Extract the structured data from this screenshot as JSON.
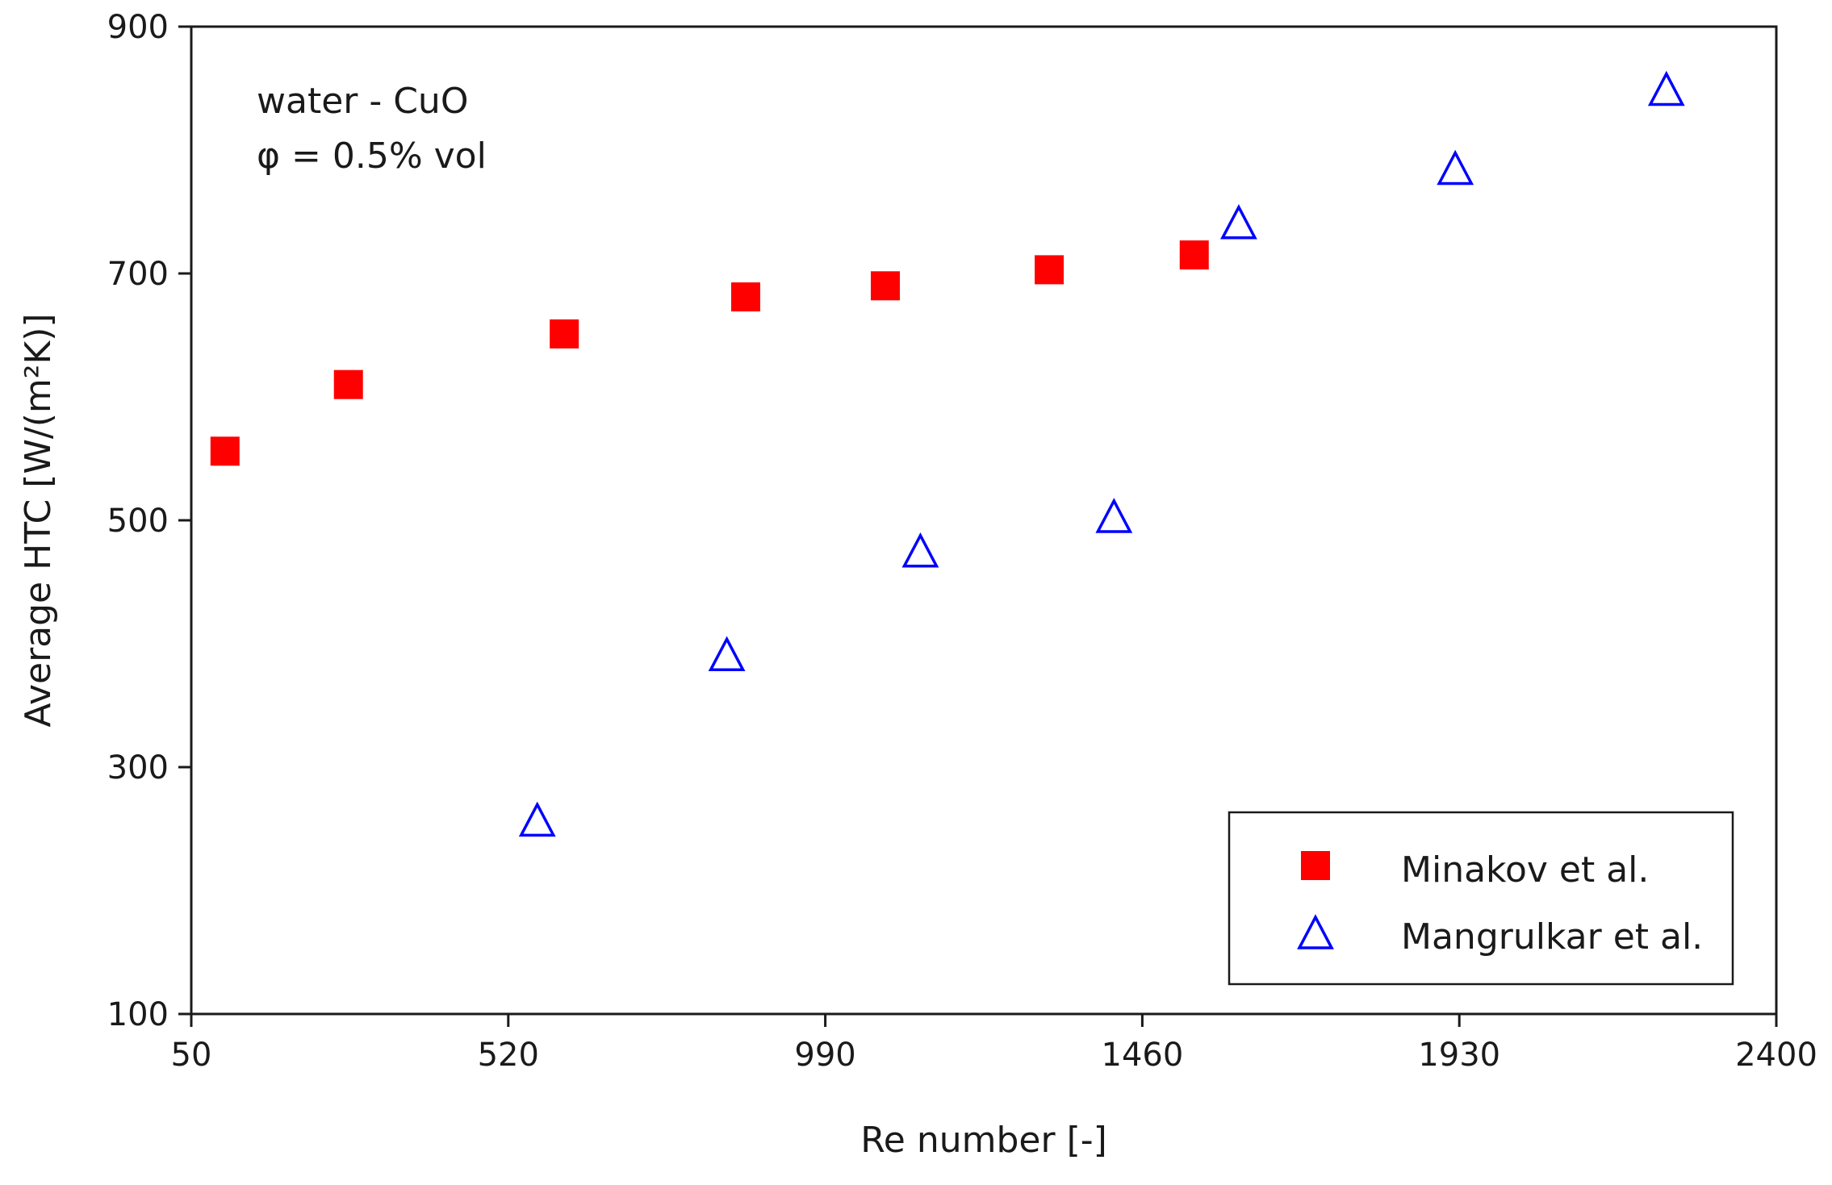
{
  "chart_data": {
    "type": "scatter",
    "title": "",
    "xlabel": "Re number [-]",
    "ylabel": "Average HTC [W/(m²K)]",
    "xlim": [
      50,
      2400
    ],
    "ylim": [
      100,
      900
    ],
    "xticks": [
      50,
      520,
      990,
      1460,
      1930,
      2400
    ],
    "yticks": [
      100,
      300,
      500,
      700,
      900
    ],
    "grid": false,
    "legend_position": "bottom-right",
    "annotations": [
      "water - CuO",
      "φ = 0.5% vol"
    ],
    "series": [
      {
        "name": "Minakov et al.",
        "marker": "square-filled",
        "color": "#ff0000",
        "x": [
          100,
          283,
          603,
          872,
          1079,
          1322,
          1537
        ],
        "y": [
          556,
          610,
          651,
          681,
          690,
          703,
          715
        ]
      },
      {
        "name": "Mangrulkar et al.",
        "marker": "triangle-open",
        "color": "#0000ff",
        "x": [
          563,
          844,
          1131,
          1418,
          1603,
          1924,
          2237
        ],
        "y": [
          256,
          390,
          474,
          502,
          740,
          784,
          848
        ]
      }
    ]
  }
}
